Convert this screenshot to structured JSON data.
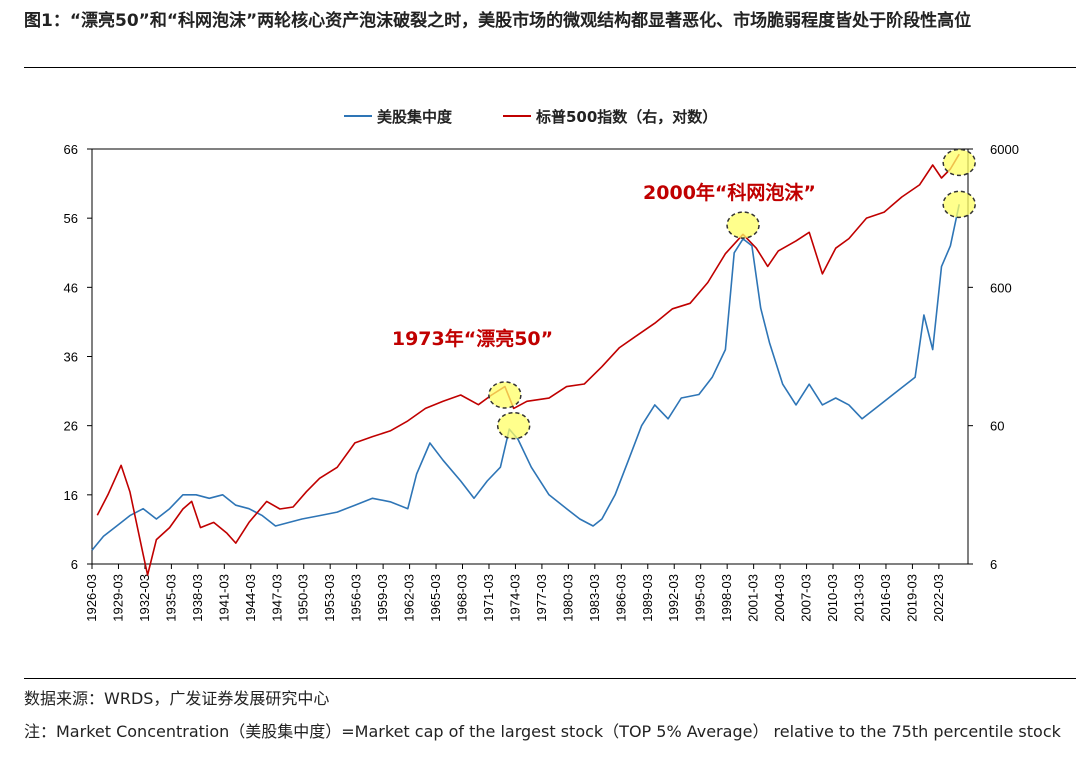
{
  "header": {
    "title": "图1：“漂亮50”和“科网泡沫”两轮核心资产泡沫破裂之时，美股市场的微观结构都显著恶化、市场脆弱程度皆处于阶段性高位"
  },
  "footer": {
    "source": "数据来源：WRDS，广发证券发展研究中心",
    "note": "注：Market Concentration（美股集中度）=Market cap of the largest stock（TOP 5% Average） relative to the 75th percentile stock"
  },
  "colors": {
    "concentration": "#2e75b6",
    "sp500": "#c00000",
    "highlight": "#ffff66"
  },
  "chart_data": {
    "type": "line",
    "legend_position": "top-center",
    "series": [
      {
        "name": "美股集中度",
        "axis": "left",
        "points": [
          [
            1926.2,
            8.0
          ],
          [
            1927.5,
            10.0
          ],
          [
            1929.0,
            11.5
          ],
          [
            1930.5,
            13.0
          ],
          [
            1932.0,
            14.0
          ],
          [
            1933.5,
            12.5
          ],
          [
            1935.0,
            14.0
          ],
          [
            1936.5,
            16.0
          ],
          [
            1938.0,
            16.0
          ],
          [
            1939.5,
            15.5
          ],
          [
            1941.0,
            16.0
          ],
          [
            1942.5,
            14.5
          ],
          [
            1944.0,
            14.0
          ],
          [
            1945.5,
            13.0
          ],
          [
            1947.0,
            11.5
          ],
          [
            1948.5,
            12.0
          ],
          [
            1950.0,
            12.5
          ],
          [
            1952.0,
            13.0
          ],
          [
            1954.0,
            13.5
          ],
          [
            1956.0,
            14.5
          ],
          [
            1958.0,
            15.5
          ],
          [
            1960.0,
            15.0
          ],
          [
            1962.0,
            14.0
          ],
          [
            1963.0,
            19.0
          ],
          [
            1964.5,
            23.5
          ],
          [
            1966.0,
            21.0
          ],
          [
            1968.0,
            18.0
          ],
          [
            1969.5,
            15.5
          ],
          [
            1971.0,
            18.0
          ],
          [
            1972.5,
            20.0
          ],
          [
            1973.5,
            25.5
          ],
          [
            1974.5,
            24.0
          ],
          [
            1976.0,
            20.0
          ],
          [
            1978.0,
            16.0
          ],
          [
            1980.0,
            14.0
          ],
          [
            1981.5,
            12.5
          ],
          [
            1983.0,
            11.5
          ],
          [
            1984.0,
            12.5
          ],
          [
            1985.5,
            16.0
          ],
          [
            1987.0,
            21.0
          ],
          [
            1988.5,
            26.0
          ],
          [
            1990.0,
            29.0
          ],
          [
            1991.5,
            27.0
          ],
          [
            1993.0,
            30.0
          ],
          [
            1995.0,
            30.5
          ],
          [
            1996.5,
            33.0
          ],
          [
            1998.0,
            37.0
          ],
          [
            1999.0,
            51.0
          ],
          [
            2000.0,
            53.0
          ],
          [
            2001.0,
            52.0
          ],
          [
            2002.0,
            43.0
          ],
          [
            2003.0,
            38.0
          ],
          [
            2004.5,
            32.0
          ],
          [
            2006.0,
            29.0
          ],
          [
            2007.5,
            32.0
          ],
          [
            2009.0,
            29.0
          ],
          [
            2010.5,
            30.0
          ],
          [
            2012.0,
            29.0
          ],
          [
            2013.5,
            27.0
          ],
          [
            2015.0,
            28.5
          ],
          [
            2016.5,
            30.0
          ],
          [
            2018.0,
            31.5
          ],
          [
            2019.5,
            33.0
          ],
          [
            2020.5,
            42.0
          ],
          [
            2021.5,
            37.0
          ],
          [
            2022.5,
            49.0
          ],
          [
            2023.5,
            52.0
          ],
          [
            2024.5,
            58.0
          ]
        ]
      },
      {
        "name": "标普500指数（右，对数）",
        "axis": "right-log",
        "points": [
          [
            1926.8,
            13.5
          ],
          [
            1928.0,
            19.0
          ],
          [
            1929.5,
            31.0
          ],
          [
            1930.5,
            20.0
          ],
          [
            1932.0,
            7.0
          ],
          [
            1932.5,
            5.0
          ],
          [
            1933.5,
            9.0
          ],
          [
            1935.0,
            11.0
          ],
          [
            1936.5,
            15.0
          ],
          [
            1937.5,
            17.0
          ],
          [
            1938.5,
            11.0
          ],
          [
            1940.0,
            12.0
          ],
          [
            1941.5,
            10.0
          ],
          [
            1942.5,
            8.5
          ],
          [
            1944.0,
            12.0
          ],
          [
            1946.0,
            17.0
          ],
          [
            1947.5,
            15.0
          ],
          [
            1949.0,
            15.5
          ],
          [
            1950.5,
            20.0
          ],
          [
            1952.0,
            25.0
          ],
          [
            1954.0,
            30.0
          ],
          [
            1956.0,
            45.0
          ],
          [
            1958.0,
            50.0
          ],
          [
            1960.0,
            55.0
          ],
          [
            1962.0,
            65.0
          ],
          [
            1964.0,
            80.0
          ],
          [
            1966.0,
            90.0
          ],
          [
            1968.0,
            100.0
          ],
          [
            1970.0,
            85.0
          ],
          [
            1971.5,
            100.0
          ],
          [
            1973.0,
            115.0
          ],
          [
            1974.0,
            80.0
          ],
          [
            1975.5,
            90.0
          ],
          [
            1978.0,
            95.0
          ],
          [
            1980.0,
            115.0
          ],
          [
            1982.0,
            120.0
          ],
          [
            1984.0,
            160.0
          ],
          [
            1986.0,
            220.0
          ],
          [
            1988.0,
            270.0
          ],
          [
            1990.0,
            330.0
          ],
          [
            1992.0,
            420.0
          ],
          [
            1994.0,
            460.0
          ],
          [
            1996.0,
            650.0
          ],
          [
            1998.0,
            1050.0
          ],
          [
            2000.0,
            1450.0
          ],
          [
            2001.5,
            1150.0
          ],
          [
            2002.8,
            850.0
          ],
          [
            2004.0,
            1100.0
          ],
          [
            2006.0,
            1300.0
          ],
          [
            2007.5,
            1500.0
          ],
          [
            2009.0,
            750.0
          ],
          [
            2010.5,
            1150.0
          ],
          [
            2012.0,
            1350.0
          ],
          [
            2014.0,
            1900.0
          ],
          [
            2016.0,
            2100.0
          ],
          [
            2018.0,
            2700.0
          ],
          [
            2020.0,
            3300.0
          ],
          [
            2021.5,
            4600.0
          ],
          [
            2022.5,
            3700.0
          ],
          [
            2023.5,
            4300.0
          ],
          [
            2024.5,
            5500.0
          ]
        ]
      }
    ],
    "x_ticks": [
      "1926-03",
      "1929-03",
      "1932-03",
      "1935-03",
      "1938-03",
      "1941-03",
      "1944-03",
      "1947-03",
      "1950-03",
      "1953-03",
      "1956-03",
      "1959-03",
      "1962-03",
      "1965-03",
      "1968-03",
      "1971-03",
      "1974-03",
      "1977-03",
      "1980-03",
      "1983-03",
      "1986-03",
      "1989-03",
      "1992-03",
      "1995-03",
      "1998-03",
      "2001-03",
      "2004-03",
      "2007-03",
      "2010-03",
      "2013-03",
      "2016-03",
      "2019-03",
      "2022-03"
    ],
    "y_left_ticks": [
      "6",
      "16",
      "26",
      "36",
      "46",
      "56",
      "66"
    ],
    "y_right_ticks": [
      "6",
      "60",
      "600",
      "6000"
    ],
    "y_left_range": [
      6,
      66
    ],
    "y_right_range_log": [
      6,
      6000
    ],
    "x_range": [
      1926.2,
      2025.5
    ],
    "annotations": [
      {
        "text": "1973年“漂亮50”",
        "x": 1973.0
      },
      {
        "text": "2000年“科网泡沫”",
        "x": 2000.0
      }
    ],
    "highlights": [
      {
        "x": 1973.0,
        "axis": "right-log",
        "y": 100
      },
      {
        "x": 1974.0,
        "axis": "left",
        "y": 26
      },
      {
        "x": 2000.0,
        "axis": "left",
        "y": 55
      },
      {
        "x": 2024.5,
        "axis": "right-log",
        "y": 4800
      },
      {
        "x": 2024.5,
        "axis": "left",
        "y": 58
      }
    ]
  }
}
